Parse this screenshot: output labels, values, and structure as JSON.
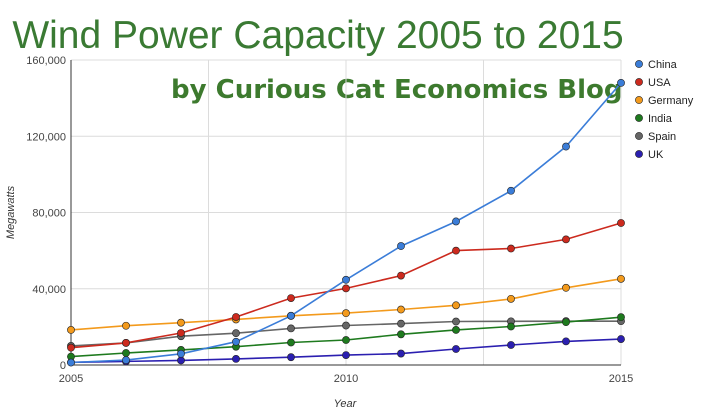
{
  "chart_data": {
    "type": "line",
    "title": "Wind Power Capacity 2005 to 2015",
    "subtitle": "by Curious Cat Economics Blog",
    "xlabel": "Year",
    "ylabel": "Megawatts",
    "xlim": [
      2005,
      2015
    ],
    "ylim": [
      0,
      160000
    ],
    "x_ticks": [
      2005,
      2010,
      2015
    ],
    "y_ticks": [
      0,
      40000,
      80000,
      120000,
      160000
    ],
    "y_tick_labels": [
      "0",
      "40,000",
      "80,000",
      "120,000",
      "160,000"
    ],
    "x_tick_labels": [
      "2005",
      "2010",
      "2015"
    ],
    "grid": true,
    "legend_position": "right",
    "x": [
      2005,
      2006,
      2007,
      2008,
      2009,
      2010,
      2011,
      2012,
      2013,
      2014,
      2015
    ],
    "series": [
      {
        "name": "China",
        "color": "#3b7dd8",
        "values": [
          1300,
          2600,
          5900,
          12200,
          25800,
          44700,
          62400,
          75300,
          91400,
          114600,
          148000
        ]
      },
      {
        "name": "USA",
        "color": "#cc2a1e",
        "values": [
          9100,
          11600,
          16800,
          25200,
          35100,
          40200,
          46900,
          60000,
          61100,
          65900,
          74500
        ]
      },
      {
        "name": "Germany",
        "color": "#f39a1c",
        "values": [
          18400,
          20600,
          22200,
          23900,
          25800,
          27200,
          29100,
          31300,
          34700,
          40500,
          45200
        ]
      },
      {
        "name": "India",
        "color": "#1e7a1e",
        "values": [
          4400,
          6300,
          7900,
          9600,
          11800,
          13100,
          16100,
          18400,
          20200,
          22500,
          25100
        ]
      },
      {
        "name": "Spain",
        "color": "#666666",
        "values": [
          10000,
          11600,
          15100,
          16700,
          19200,
          20700,
          21700,
          22800,
          22900,
          23000,
          23000
        ]
      },
      {
        "name": "UK",
        "color": "#2b1fb0",
        "values": [
          1400,
          1900,
          2400,
          3200,
          4100,
          5200,
          6000,
          8400,
          10500,
          12400,
          13600
        ]
      }
    ]
  }
}
